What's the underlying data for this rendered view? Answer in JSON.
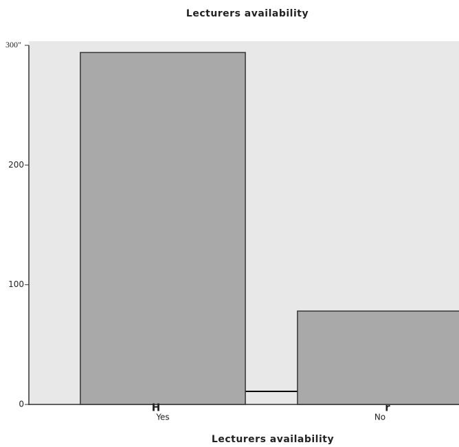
{
  "chart_data": {
    "type": "bar",
    "title": "Lecturers availability",
    "x_label": "Lecturers availability",
    "categories": [
      "Yes",
      "No"
    ],
    "values": [
      294,
      78
    ],
    "color": "#a9a9a9",
    "ylim": [
      0,
      300
    ],
    "yticks": [
      0,
      100,
      200,
      {
        "value": 300,
        "label": "300\""
      }
    ],
    "annotations": [
      "H",
      "r"
    ]
  }
}
